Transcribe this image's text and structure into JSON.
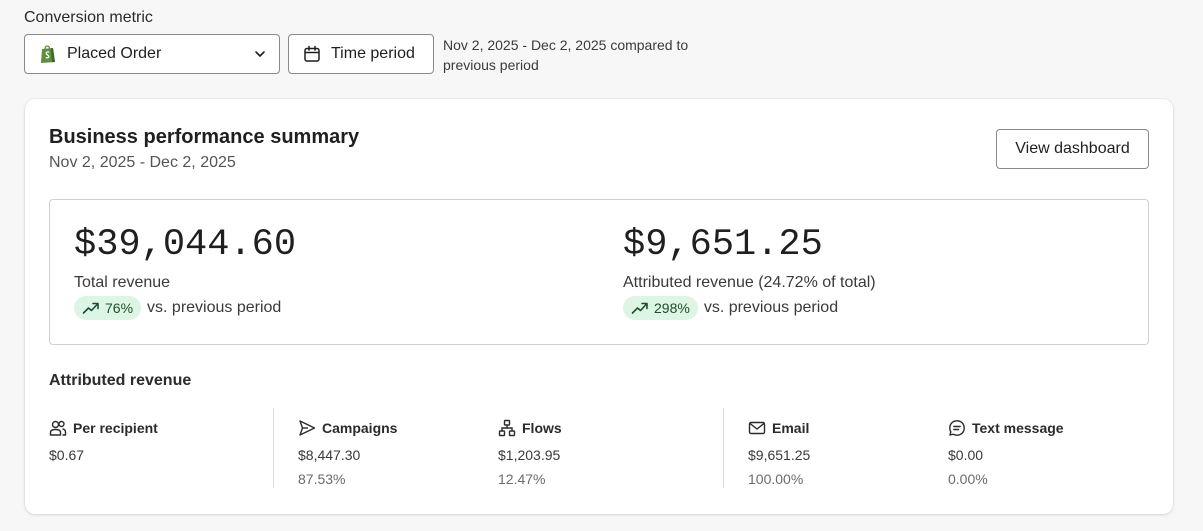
{
  "conversion_metric": {
    "label": "Conversion metric",
    "selected": "Placed Order",
    "icon": "shopify-bag-icon"
  },
  "time_period": {
    "button_label": "Time period",
    "range_note": "Nov 2, 2025 - Dec 2, 2025 compared to previous period"
  },
  "summary": {
    "title": "Business performance summary",
    "subtitle": "Nov 2, 2025 - Dec 2, 2025",
    "view_dashboard_label": "View dashboard",
    "total": {
      "amount": "$39,044.60",
      "label": "Total revenue",
      "change": "76%",
      "change_suffix": "vs. previous period"
    },
    "attributed": {
      "amount": "$9,651.25",
      "label": "Attributed revenue (24.72% of total)",
      "change": "298%",
      "change_suffix": "vs. previous period"
    }
  },
  "attributed_revenue": {
    "title": "Attributed revenue",
    "columns": [
      {
        "icon": "people-icon",
        "label": "Per recipient",
        "value": "$0.67",
        "percent": ""
      },
      {
        "icon": "send-icon",
        "label": "Campaigns",
        "value": "$8,447.30",
        "percent": "87.53%"
      },
      {
        "icon": "flow-icon",
        "label": "Flows",
        "value": "$1,203.95",
        "percent": "12.47%"
      },
      {
        "icon": "mail-icon",
        "label": "Email",
        "value": "$9,651.25",
        "percent": "100.00%"
      },
      {
        "icon": "chat-icon",
        "label": "Text message",
        "value": "$0.00",
        "percent": "0.00%"
      }
    ]
  },
  "colors": {
    "badge_bg": "#ddf5e4",
    "badge_text": "#1f4d2c",
    "shopify_green": "#5e8e3e"
  }
}
